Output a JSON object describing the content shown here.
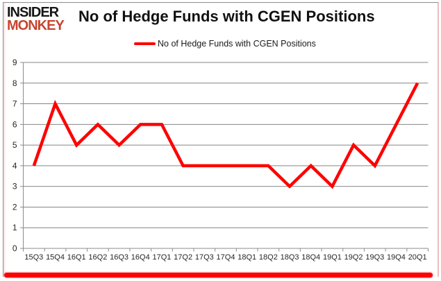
{
  "brand": {
    "line1": "INSIDER",
    "line2": "MONKEY",
    "line1_color": "#161616",
    "line2_color": "#c7452e"
  },
  "header": {
    "title": "No of Hedge Funds with CGEN Positions"
  },
  "legend": {
    "label": "No of Hedge Funds with CGEN Positions",
    "marker_color": "#fe0000"
  },
  "chart_data": {
    "type": "line",
    "title": "No of Hedge Funds with CGEN Positions",
    "categories": [
      "15Q3",
      "15Q4",
      "16Q1",
      "16Q2",
      "16Q3",
      "16Q4",
      "17Q1",
      "17Q2",
      "17Q3",
      "17Q4",
      "18Q1",
      "18Q2",
      "18Q3",
      "18Q4",
      "19Q1",
      "19Q2",
      "19Q3",
      "19Q4",
      "20Q1"
    ],
    "series": [
      {
        "name": "No of Hedge Funds with CGEN Positions",
        "values": [
          4,
          7,
          5,
          6,
          5,
          6,
          6,
          4,
          4,
          4,
          4,
          4,
          3,
          4,
          3,
          5,
          4,
          6,
          8
        ],
        "color": "#fe0000"
      }
    ],
    "xlabel": "",
    "ylabel": "",
    "ylim": [
      0,
      9
    ],
    "ytick_step": 1,
    "grid": true,
    "legend_position": "top",
    "grid_color": "#848484",
    "axis_color": "#8c8c8c",
    "tick_label_color": "#262626",
    "line_width": 4.5
  },
  "frame": {
    "bottom_bar_color": "#fb0204"
  }
}
